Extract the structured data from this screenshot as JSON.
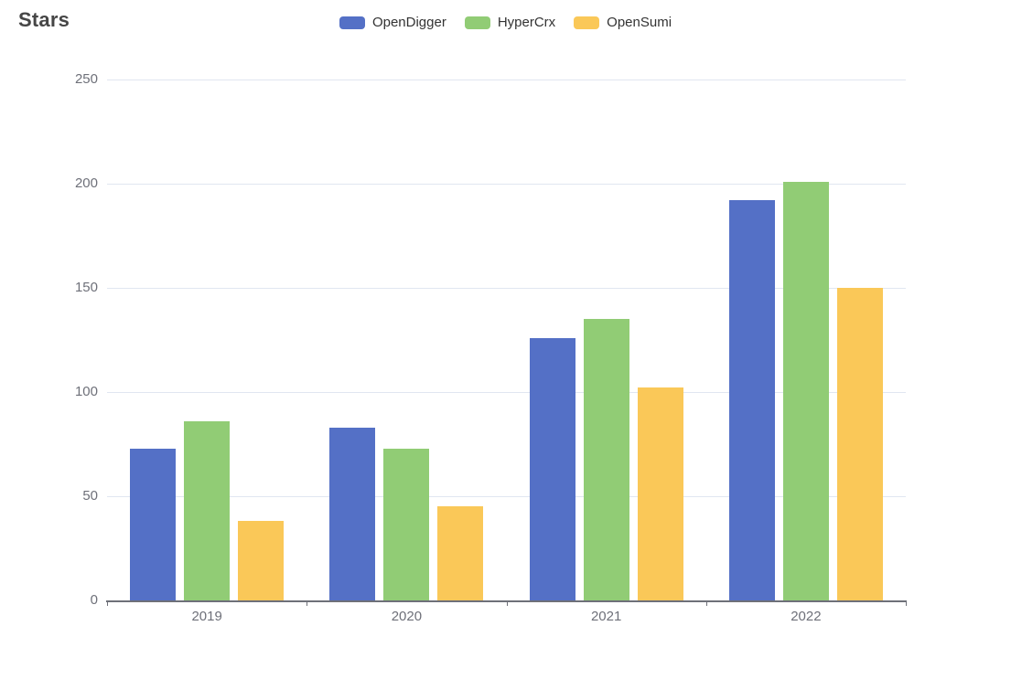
{
  "chart_data": {
    "type": "bar",
    "title": "Stars",
    "categories": [
      "2019",
      "2020",
      "2021",
      "2022"
    ],
    "series": [
      {
        "name": "OpenDigger",
        "color": "#5470c6",
        "values": [
          73,
          83,
          126,
          192
        ]
      },
      {
        "name": "HyperCrx",
        "color": "#91cc75",
        "values": [
          86,
          73,
          135,
          201
        ]
      },
      {
        "name": "OpenSumi",
        "color": "#fac858",
        "values": [
          38,
          45,
          102,
          150
        ]
      }
    ],
    "xlabel": "",
    "ylabel": "",
    "ylim": [
      0,
      250
    ],
    "yticks": [
      0,
      50,
      100,
      150,
      200,
      250
    ],
    "grid": true,
    "legend_position": "top-center"
  },
  "theme": {
    "background": "#ffffff",
    "grid_color": "#e0e6f1",
    "axis_color": "#6e7079",
    "tick_label_color": "#6e7079",
    "title_color": "#464646",
    "legend_text_color": "#333333"
  }
}
